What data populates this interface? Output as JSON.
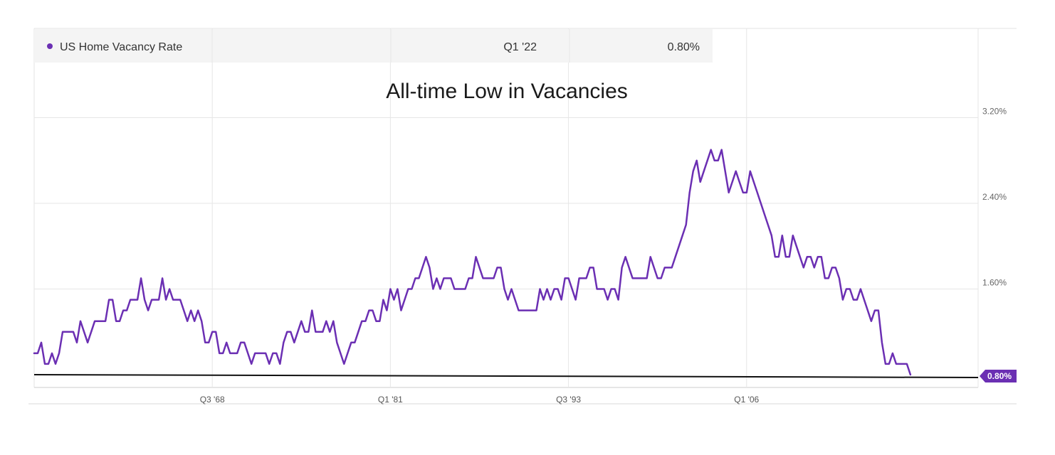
{
  "legend": {
    "series_name": "US Home Vacancy Rate",
    "period": "Q1 '22",
    "value": "0.80%"
  },
  "badge": {
    "value": "0.80%"
  },
  "colors": {
    "series": "#6b2fb3",
    "baseline": "#111111",
    "grid": "#e6e6e6"
  },
  "chart_data": {
    "type": "line",
    "title": "All-time Low in Vacancies",
    "xlabel": "",
    "ylabel": "",
    "y_ticks": [
      {
        "value": 1.6,
        "label": "1.60%"
      },
      {
        "value": 2.4,
        "label": "2.40%"
      },
      {
        "value": 3.2,
        "label": "3.20%"
      }
    ],
    "x_ticks": [
      {
        "value": 1968.5,
        "label": "Q3 '68"
      },
      {
        "value": 1981.0,
        "label": "Q1 '81"
      },
      {
        "value": 1993.5,
        "label": "Q3 '93"
      },
      {
        "value": 2006.0,
        "label": "Q1 '06"
      }
    ],
    "xlim": [
      1956,
      2022.25
    ],
    "ylim": [
      0.7,
      3.4
    ],
    "grid": true,
    "annotation": "horizontal line at the current level of 0.80%",
    "series": [
      {
        "name": "US Home Vacancy Rate",
        "points": [
          [
            1956.0,
            1.0
          ],
          [
            1956.25,
            1.0
          ],
          [
            1956.5,
            1.1
          ],
          [
            1956.75,
            0.9
          ],
          [
            1957.0,
            0.9
          ],
          [
            1957.25,
            1.0
          ],
          [
            1957.5,
            0.9
          ],
          [
            1957.75,
            1.0
          ],
          [
            1958.0,
            1.2
          ],
          [
            1958.25,
            1.2
          ],
          [
            1958.5,
            1.2
          ],
          [
            1958.75,
            1.2
          ],
          [
            1959.0,
            1.1
          ],
          [
            1959.25,
            1.3
          ],
          [
            1959.5,
            1.2
          ],
          [
            1959.75,
            1.1
          ],
          [
            1960.0,
            1.2
          ],
          [
            1960.25,
            1.3
          ],
          [
            1960.5,
            1.3
          ],
          [
            1960.75,
            1.3
          ],
          [
            1961.0,
            1.3
          ],
          [
            1961.25,
            1.5
          ],
          [
            1961.5,
            1.5
          ],
          [
            1961.75,
            1.3
          ],
          [
            1962.0,
            1.3
          ],
          [
            1962.25,
            1.4
          ],
          [
            1962.5,
            1.4
          ],
          [
            1962.75,
            1.5
          ],
          [
            1963.0,
            1.5
          ],
          [
            1963.25,
            1.5
          ],
          [
            1963.5,
            1.7
          ],
          [
            1963.75,
            1.5
          ],
          [
            1964.0,
            1.4
          ],
          [
            1964.25,
            1.5
          ],
          [
            1964.5,
            1.5
          ],
          [
            1964.75,
            1.5
          ],
          [
            1965.0,
            1.7
          ],
          [
            1965.25,
            1.5
          ],
          [
            1965.5,
            1.6
          ],
          [
            1965.75,
            1.5
          ],
          [
            1966.0,
            1.5
          ],
          [
            1966.25,
            1.5
          ],
          [
            1966.5,
            1.4
          ],
          [
            1966.75,
            1.3
          ],
          [
            1967.0,
            1.4
          ],
          [
            1967.25,
            1.3
          ],
          [
            1967.5,
            1.4
          ],
          [
            1967.75,
            1.3
          ],
          [
            1968.0,
            1.1
          ],
          [
            1968.25,
            1.1
          ],
          [
            1968.5,
            1.2
          ],
          [
            1968.75,
            1.2
          ],
          [
            1969.0,
            1.0
          ],
          [
            1969.25,
            1.0
          ],
          [
            1969.5,
            1.1
          ],
          [
            1969.75,
            1.0
          ],
          [
            1970.0,
            1.0
          ],
          [
            1970.25,
            1.0
          ],
          [
            1970.5,
            1.1
          ],
          [
            1970.75,
            1.1
          ],
          [
            1971.0,
            1.0
          ],
          [
            1971.25,
            0.9
          ],
          [
            1971.5,
            1.0
          ],
          [
            1971.75,
            1.0
          ],
          [
            1972.0,
            1.0
          ],
          [
            1972.25,
            1.0
          ],
          [
            1972.5,
            0.9
          ],
          [
            1972.75,
            1.0
          ],
          [
            1973.0,
            1.0
          ],
          [
            1973.25,
            0.9
          ],
          [
            1973.5,
            1.1
          ],
          [
            1973.75,
            1.2
          ],
          [
            1974.0,
            1.2
          ],
          [
            1974.25,
            1.1
          ],
          [
            1974.5,
            1.2
          ],
          [
            1974.75,
            1.3
          ],
          [
            1975.0,
            1.2
          ],
          [
            1975.25,
            1.2
          ],
          [
            1975.5,
            1.4
          ],
          [
            1975.75,
            1.2
          ],
          [
            1976.0,
            1.2
          ],
          [
            1976.25,
            1.2
          ],
          [
            1976.5,
            1.3
          ],
          [
            1976.75,
            1.2
          ],
          [
            1977.0,
            1.3
          ],
          [
            1977.25,
            1.1
          ],
          [
            1977.5,
            1.0
          ],
          [
            1977.75,
            0.9
          ],
          [
            1978.0,
            1.0
          ],
          [
            1978.25,
            1.1
          ],
          [
            1978.5,
            1.1
          ],
          [
            1978.75,
            1.2
          ],
          [
            1979.0,
            1.3
          ],
          [
            1979.25,
            1.3
          ],
          [
            1979.5,
            1.4
          ],
          [
            1979.75,
            1.4
          ],
          [
            1980.0,
            1.3
          ],
          [
            1980.25,
            1.3
          ],
          [
            1980.5,
            1.5
          ],
          [
            1980.75,
            1.4
          ],
          [
            1981.0,
            1.6
          ],
          [
            1981.25,
            1.5
          ],
          [
            1981.5,
            1.6
          ],
          [
            1981.75,
            1.4
          ],
          [
            1982.0,
            1.5
          ],
          [
            1982.25,
            1.6
          ],
          [
            1982.5,
            1.6
          ],
          [
            1982.75,
            1.7
          ],
          [
            1983.0,
            1.7
          ],
          [
            1983.25,
            1.8
          ],
          [
            1983.5,
            1.9
          ],
          [
            1983.75,
            1.8
          ],
          [
            1984.0,
            1.6
          ],
          [
            1984.25,
            1.7
          ],
          [
            1984.5,
            1.6
          ],
          [
            1984.75,
            1.7
          ],
          [
            1985.0,
            1.7
          ],
          [
            1985.25,
            1.7
          ],
          [
            1985.5,
            1.6
          ],
          [
            1985.75,
            1.6
          ],
          [
            1986.0,
            1.6
          ],
          [
            1986.25,
            1.6
          ],
          [
            1986.5,
            1.7
          ],
          [
            1986.75,
            1.7
          ],
          [
            1987.0,
            1.9
          ],
          [
            1987.25,
            1.8
          ],
          [
            1987.5,
            1.7
          ],
          [
            1987.75,
            1.7
          ],
          [
            1988.0,
            1.7
          ],
          [
            1988.25,
            1.7
          ],
          [
            1988.5,
            1.8
          ],
          [
            1988.75,
            1.8
          ],
          [
            1989.0,
            1.6
          ],
          [
            1989.25,
            1.5
          ],
          [
            1989.5,
            1.6
          ],
          [
            1989.75,
            1.5
          ],
          [
            1990.0,
            1.4
          ],
          [
            1990.25,
            1.4
          ],
          [
            1990.5,
            1.4
          ],
          [
            1990.75,
            1.4
          ],
          [
            1991.0,
            1.4
          ],
          [
            1991.25,
            1.4
          ],
          [
            1991.5,
            1.6
          ],
          [
            1991.75,
            1.5
          ],
          [
            1992.0,
            1.6
          ],
          [
            1992.25,
            1.5
          ],
          [
            1992.5,
            1.6
          ],
          [
            1992.75,
            1.6
          ],
          [
            1993.0,
            1.5
          ],
          [
            1993.25,
            1.7
          ],
          [
            1993.5,
            1.7
          ],
          [
            1993.75,
            1.6
          ],
          [
            1994.0,
            1.5
          ],
          [
            1994.25,
            1.7
          ],
          [
            1994.5,
            1.7
          ],
          [
            1994.75,
            1.7
          ],
          [
            1995.0,
            1.8
          ],
          [
            1995.25,
            1.8
          ],
          [
            1995.5,
            1.6
          ],
          [
            1995.75,
            1.6
          ],
          [
            1996.0,
            1.6
          ],
          [
            1996.25,
            1.5
          ],
          [
            1996.5,
            1.6
          ],
          [
            1996.75,
            1.6
          ],
          [
            1997.0,
            1.5
          ],
          [
            1997.25,
            1.8
          ],
          [
            1997.5,
            1.9
          ],
          [
            1997.75,
            1.8
          ],
          [
            1998.0,
            1.7
          ],
          [
            1998.25,
            1.7
          ],
          [
            1998.5,
            1.7
          ],
          [
            1998.75,
            1.7
          ],
          [
            1999.0,
            1.7
          ],
          [
            1999.25,
            1.9
          ],
          [
            1999.5,
            1.8
          ],
          [
            1999.75,
            1.7
          ],
          [
            2000.0,
            1.7
          ],
          [
            2000.25,
            1.8
          ],
          [
            2000.5,
            1.8
          ],
          [
            2000.75,
            1.8
          ],
          [
            2001.0,
            1.9
          ],
          [
            2001.25,
            2.0
          ],
          [
            2001.5,
            2.1
          ],
          [
            2001.75,
            2.2
          ],
          [
            2002.0,
            2.5
          ],
          [
            2002.25,
            2.7
          ],
          [
            2002.5,
            2.8
          ],
          [
            2002.75,
            2.6
          ],
          [
            2003.0,
            2.7
          ],
          [
            2003.25,
            2.8
          ],
          [
            2003.5,
            2.9
          ],
          [
            2003.75,
            2.8
          ],
          [
            2004.0,
            2.8
          ],
          [
            2004.25,
            2.9
          ],
          [
            2004.5,
            2.7
          ],
          [
            2004.75,
            2.5
          ],
          [
            2005.0,
            2.6
          ],
          [
            2005.25,
            2.7
          ],
          [
            2005.5,
            2.6
          ],
          [
            2005.75,
            2.5
          ],
          [
            2006.0,
            2.5
          ],
          [
            2006.25,
            2.7
          ],
          [
            2006.5,
            2.6
          ],
          [
            2006.75,
            2.5
          ],
          [
            2007.0,
            2.4
          ],
          [
            2007.25,
            2.3
          ],
          [
            2007.5,
            2.2
          ],
          [
            2007.75,
            2.1
          ],
          [
            2008.0,
            1.9
          ],
          [
            2008.25,
            1.9
          ],
          [
            2008.5,
            2.1
          ],
          [
            2008.75,
            1.9
          ],
          [
            2009.0,
            1.9
          ],
          [
            2009.25,
            2.1
          ],
          [
            2009.5,
            2.0
          ],
          [
            2009.75,
            1.9
          ],
          [
            2010.0,
            1.8
          ],
          [
            2010.25,
            1.9
          ],
          [
            2010.5,
            1.9
          ],
          [
            2010.75,
            1.8
          ],
          [
            2011.0,
            1.9
          ],
          [
            2011.25,
            1.9
          ],
          [
            2011.5,
            1.7
          ],
          [
            2011.75,
            1.7
          ],
          [
            2012.0,
            1.8
          ],
          [
            2012.25,
            1.8
          ],
          [
            2012.5,
            1.7
          ],
          [
            2012.75,
            1.5
          ],
          [
            2013.0,
            1.6
          ],
          [
            2013.25,
            1.6
          ],
          [
            2013.5,
            1.5
          ],
          [
            2013.75,
            1.5
          ],
          [
            2014.0,
            1.6
          ],
          [
            2014.25,
            1.5
          ],
          [
            2014.5,
            1.4
          ],
          [
            2014.75,
            1.3
          ],
          [
            2015.0,
            1.4
          ],
          [
            2015.25,
            1.4
          ],
          [
            2015.5,
            1.1
          ],
          [
            2015.75,
            0.9
          ],
          [
            2016.0,
            0.9
          ],
          [
            2016.25,
            1.0
          ],
          [
            2016.5,
            0.9
          ],
          [
            2016.75,
            0.9
          ],
          [
            2017.0,
            0.9
          ],
          [
            2017.25,
            0.9
          ],
          [
            2017.5,
            0.8
          ]
        ]
      }
    ]
  }
}
